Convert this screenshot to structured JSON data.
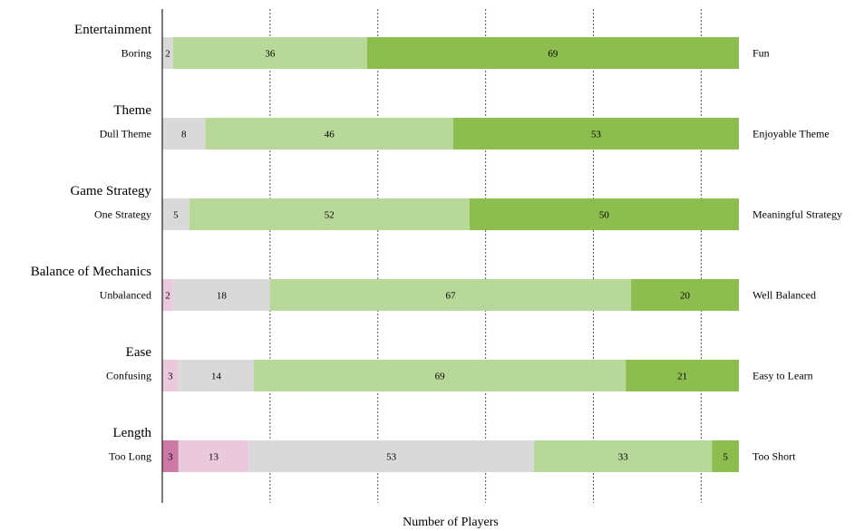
{
  "chart_data": {
    "type": "bar",
    "orientation": "horizontal",
    "stacked": true,
    "xlabel": "Number of Players",
    "grid": "vertical dashed",
    "xlim": [
      0,
      107
    ],
    "categories": [
      {
        "title": "Entertainment",
        "left": "Boring",
        "right": "Fun",
        "values": [
          0,
          0,
          2,
          36,
          69
        ]
      },
      {
        "title": "Theme",
        "left": "Dull Theme",
        "right": "Enjoyable Theme",
        "values": [
          0,
          0,
          8,
          46,
          53
        ]
      },
      {
        "title": "Game Strategy",
        "left": "One Strategy",
        "right": "Meaningful Strategy",
        "values": [
          0,
          0,
          5,
          52,
          50
        ]
      },
      {
        "title": "Balance of Mechanics",
        "left": "Unbalanced",
        "right": "Well Balanced",
        "values": [
          0,
          2,
          18,
          67,
          20
        ]
      },
      {
        "title": "Ease",
        "left": "Confusing",
        "right": "Easy to Learn",
        "values": [
          0,
          3,
          14,
          69,
          21
        ]
      },
      {
        "title": "Length",
        "left": "Too Long",
        "right": "Too Short",
        "values": [
          3,
          13,
          53,
          33,
          5
        ]
      }
    ],
    "colors": [
      "#cc7aa5",
      "#ebc9dd",
      "#d9d9d9",
      "#b7d898",
      "#8dbd4f"
    ]
  }
}
